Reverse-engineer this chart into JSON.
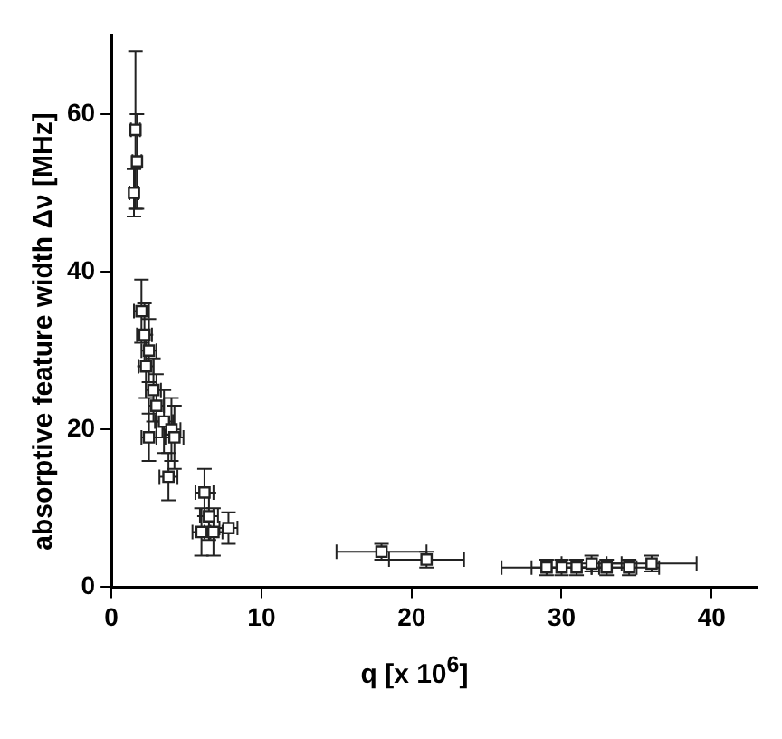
{
  "chart_data": {
    "type": "scatter",
    "xlabel": "q [x 10$^{6}$]",
    "ylabel": "absorptive feature width Δν [MHz]",
    "x": [
      1.5,
      1.7,
      1.6,
      2,
      2.2,
      2.5,
      2.3,
      2.8,
      3,
      2.5,
      3.5,
      4,
      4.2,
      3.8,
      6.2,
      6.5,
      6.8,
      6,
      7.8,
      18,
      21,
      29,
      30,
      31,
      32,
      33,
      34.5,
      36
    ],
    "series": [
      {
        "color": "#222222",
        "values": [
          50,
          54,
          58,
          35,
          32,
          30,
          28,
          25,
          23,
          19,
          21,
          20,
          19,
          14,
          12,
          9,
          7,
          7,
          7.5,
          4.5,
          3.5,
          2.5,
          2.5,
          2.5,
          3,
          2.5,
          2.5,
          3
        ],
        "errors": [
          3,
          6,
          10,
          4,
          4,
          4,
          4,
          4,
          4,
          3,
          4,
          4,
          4,
          3,
          3,
          3,
          3,
          3,
          2,
          1,
          1,
          1,
          1,
          1,
          1,
          1,
          1,
          1
        ],
        "xerrors": [
          0.3,
          0.3,
          0.3,
          0.5,
          0.5,
          0.5,
          0.5,
          0.5,
          0.5,
          0.5,
          0.6,
          0.6,
          0.6,
          0.6,
          0.6,
          0.6,
          0.6,
          0.6,
          0.6,
          3,
          2.5,
          3,
          2,
          2,
          2,
          2,
          2,
          3
        ]
      }
    ],
    "xlim": [
      0,
      43
    ],
    "xticks": [
      0,
      10,
      20,
      30,
      40
    ],
    "ylim": [
      0,
      70
    ],
    "yticks": [
      0,
      20,
      40,
      60
    ],
    "grid": false
  }
}
